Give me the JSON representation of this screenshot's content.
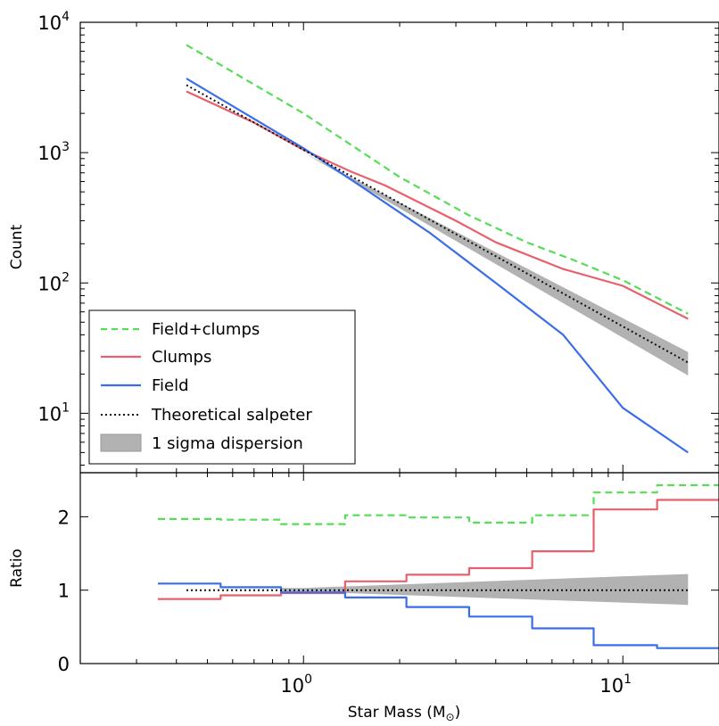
{
  "chart_data": [
    {
      "type": "line",
      "panel": "top",
      "xscale": "log",
      "yscale": "log",
      "xlim": [
        0.2,
        20
      ],
      "ylim": [
        3.5,
        10000
      ],
      "xlabel": "",
      "ylabel": "Count",
      "yticks": [
        {
          "value": 10,
          "base": "10",
          "exp": "1"
        },
        {
          "value": 100,
          "base": "10",
          "exp": "2"
        },
        {
          "value": 1000,
          "base": "10",
          "exp": "3"
        },
        {
          "value": 10000,
          "base": "10",
          "exp": "4"
        }
      ],
      "grid": false,
      "legend_position": "lower-left",
      "series": [
        {
          "name": "Field+clumps",
          "color": "#55dd55",
          "style": "dashed",
          "x": [
            0.43,
            1.0,
            2.0,
            3.3,
            5.0,
            7.0,
            10.0,
            16.0
          ],
          "y": [
            6700,
            2000,
            650,
            330,
            205,
            150,
            105,
            58
          ]
        },
        {
          "name": "Clumps",
          "color": "#e8606c",
          "style": "solid",
          "x": [
            0.43,
            0.7,
            1.0,
            1.4,
            1.8,
            3.0,
            4.0,
            6.5,
            10.0,
            16.0
          ],
          "y": [
            2950,
            1700,
            1050,
            720,
            560,
            300,
            205,
            128,
            95,
            53
          ]
        },
        {
          "name": "Field",
          "color": "#3a6ee8",
          "style": "solid",
          "x": [
            0.43,
            1.0,
            1.5,
            2.5,
            4.0,
            6.5,
            10.0,
            16.0
          ],
          "y": [
            3700,
            1080,
            560,
            240,
            100,
            40,
            11,
            5
          ]
        },
        {
          "name": "Theoretical salpeter",
          "color": "#111111",
          "style": "dotted",
          "x": [
            0.43,
            16.0
          ],
          "y": [
            3300,
            24.5
          ]
        }
      ],
      "band": {
        "name": "1 sigma dispersion",
        "color": "#b2b2b2",
        "x": [
          1.0,
          16.0
        ],
        "lower": [
          1000,
          19.5
        ],
        "upper": [
          1000,
          29.5
        ]
      }
    },
    {
      "type": "line",
      "panel": "bottom",
      "xscale": "log",
      "xlim": [
        0.2,
        20
      ],
      "ylim": [
        0,
        2.6
      ],
      "xlabel": "Star Mass (M",
      "xlabel_sub": "⊙",
      "xlabel_end": ")",
      "ylabel": "Ratio",
      "xticks": [
        {
          "value": 1,
          "base": "10",
          "exp": "0"
        },
        {
          "value": 10,
          "base": "10",
          "exp": "1"
        }
      ],
      "yticks": [
        {
          "value": 0,
          "label": "0"
        },
        {
          "value": 1,
          "label": "1"
        },
        {
          "value": 2,
          "label": "2"
        }
      ],
      "grid": false,
      "bin_edges": [
        0.35,
        0.55,
        0.85,
        1.35,
        2.1,
        3.3,
        5.2,
        8.1,
        12.8,
        20
      ],
      "series": [
        {
          "name": "Field+clumps",
          "color": "#55dd55",
          "style": "dashed",
          "steps": [
            1.97,
            1.96,
            1.9,
            2.02,
            1.99,
            1.92,
            2.02,
            2.33,
            2.43
          ]
        },
        {
          "name": "Clumps",
          "color": "#e8606c",
          "style": "solid",
          "steps": [
            0.88,
            0.93,
            0.96,
            1.12,
            1.21,
            1.3,
            1.53,
            2.1,
            2.23
          ]
        },
        {
          "name": "Field",
          "color": "#3a6ee8",
          "style": "solid",
          "steps": [
            1.09,
            1.04,
            0.97,
            0.9,
            0.77,
            0.64,
            0.48,
            0.25,
            0.21
          ]
        },
        {
          "name": "Theoretical salpeter",
          "color": "#111111",
          "style": "dotted",
          "x": [
            0.43,
            16.0
          ],
          "y": [
            1.0,
            1.0
          ]
        }
      ],
      "band": {
        "name": "1 sigma dispersion",
        "color": "#b2b2b2",
        "x": [
          0.85,
          1.0,
          16.0
        ],
        "lower": [
          0.98,
          0.98,
          0.8
        ],
        "upper": [
          1.03,
          1.03,
          1.22
        ]
      }
    }
  ]
}
